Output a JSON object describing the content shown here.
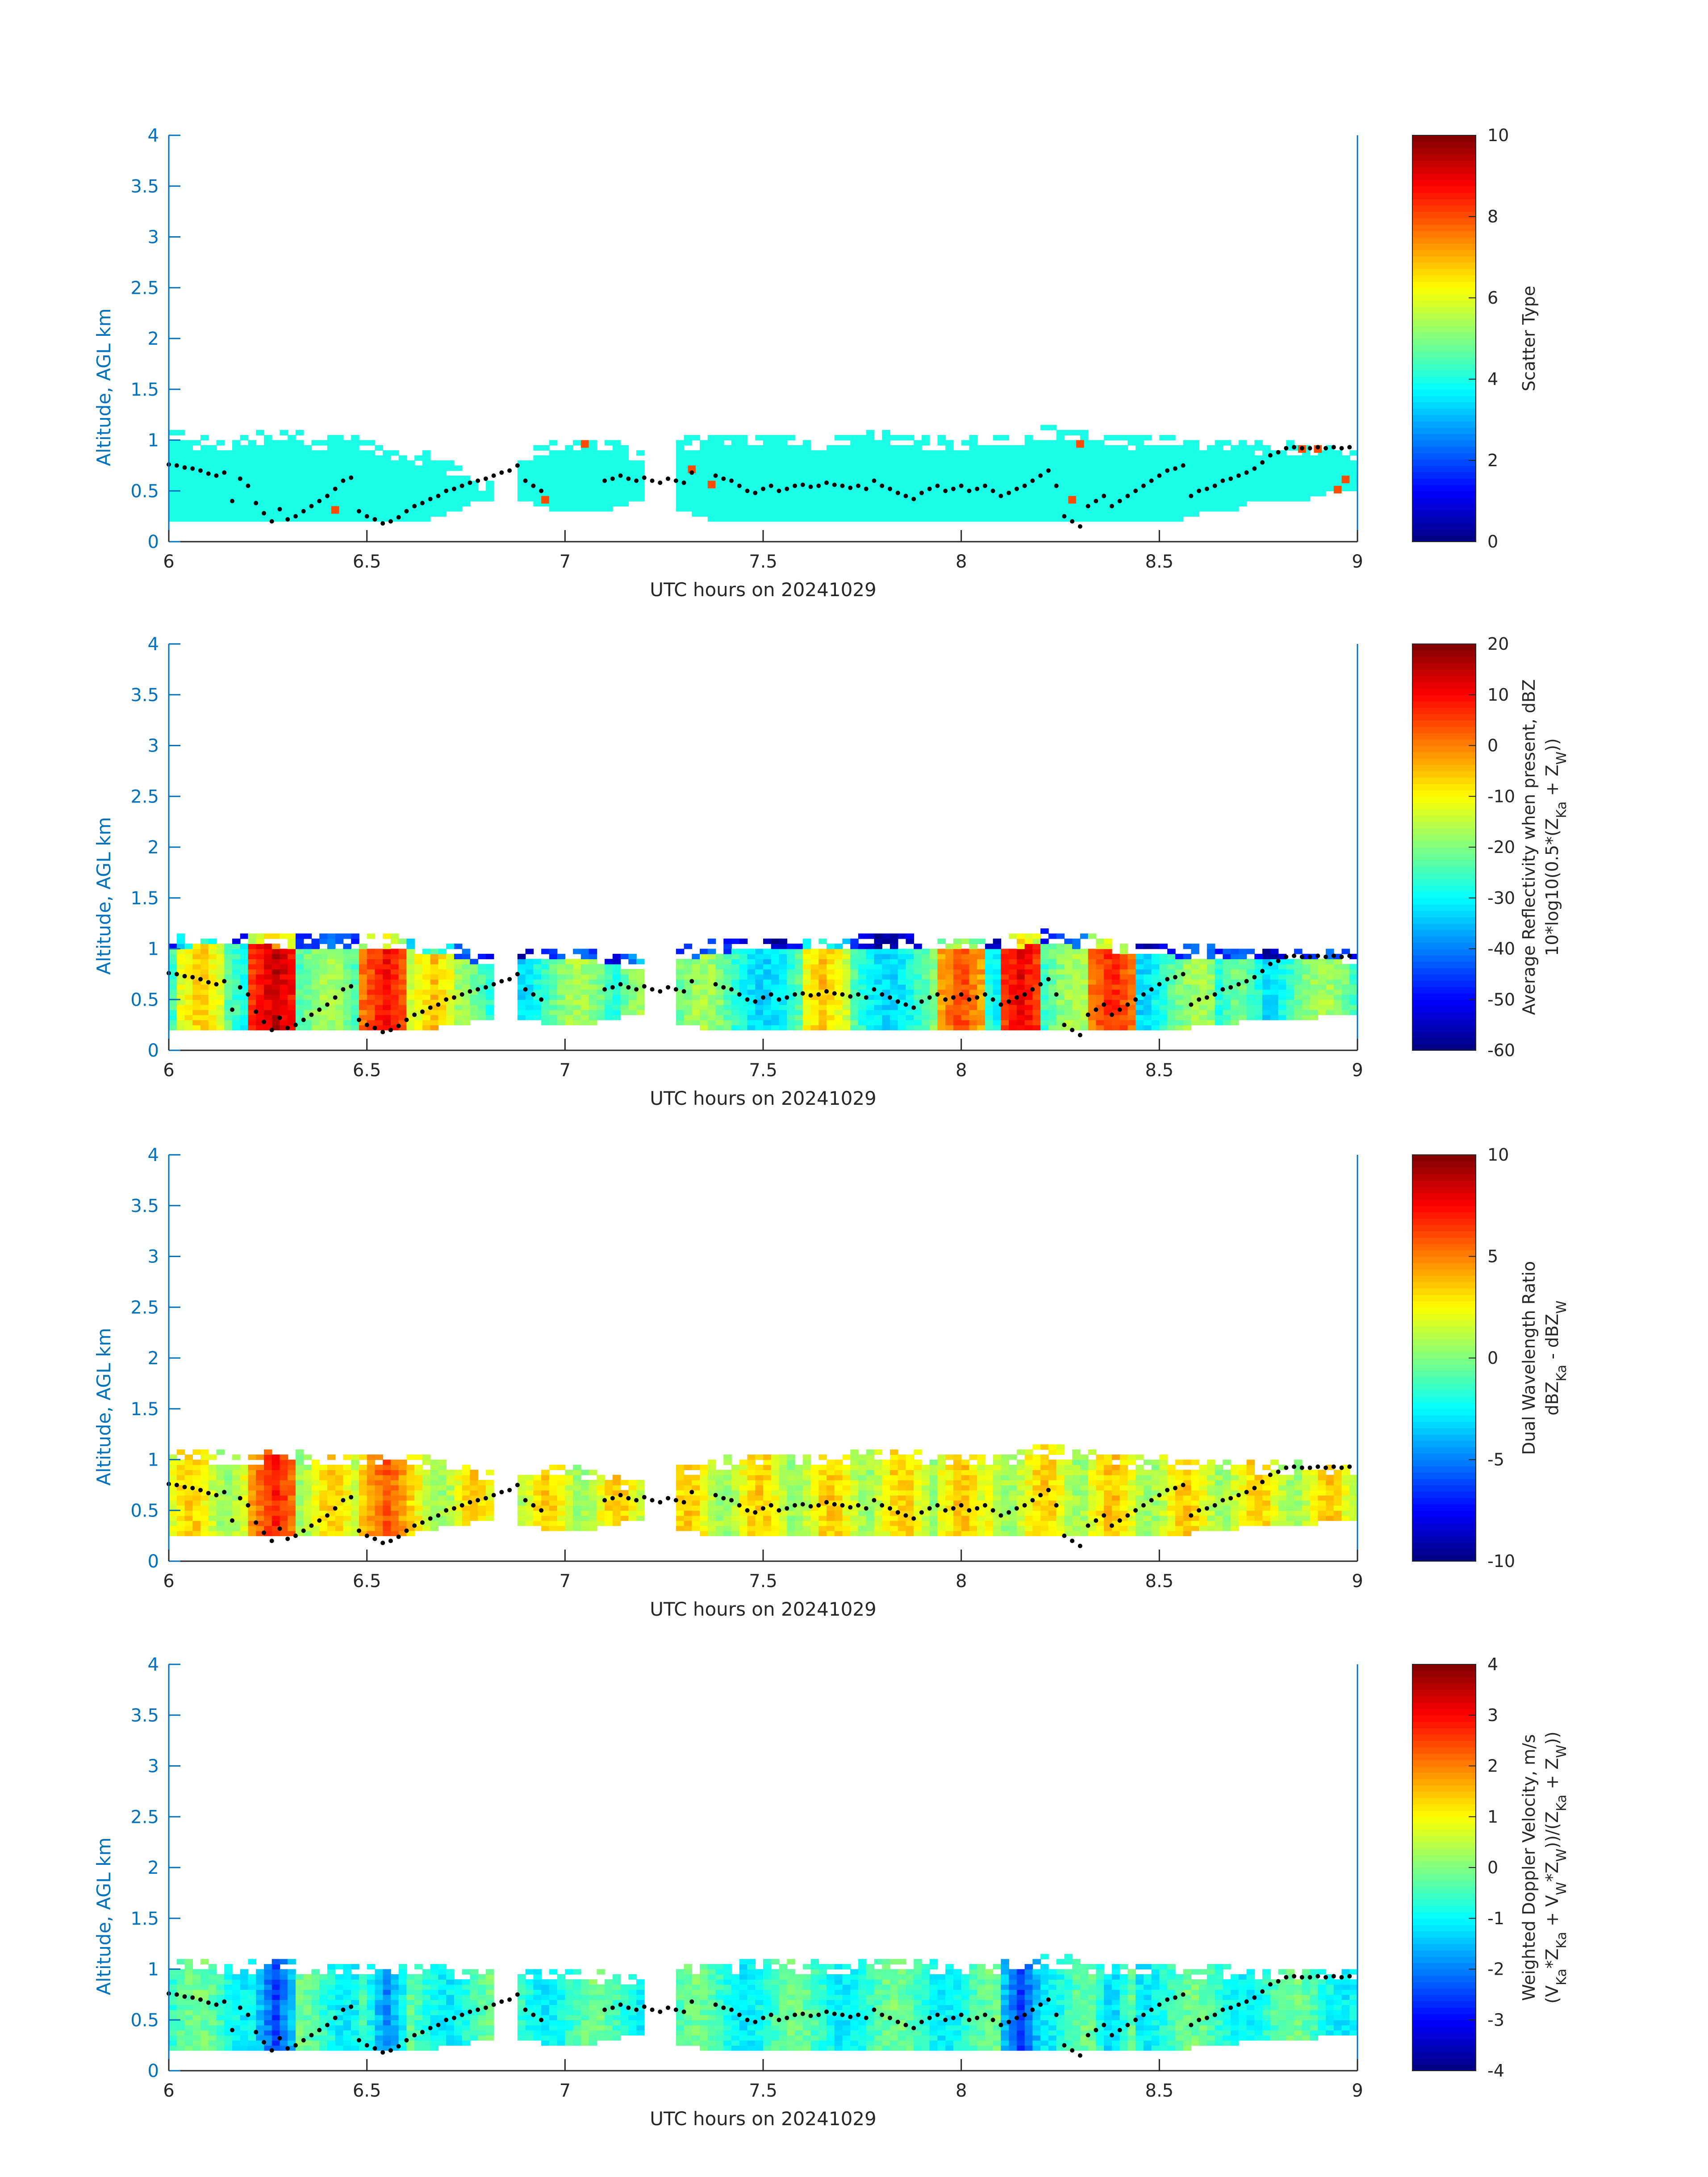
{
  "xlabel": "UTC hours on 20241029",
  "ylabel": "Altitude, AGL km",
  "chart_data": [
    {
      "type": "heatmap",
      "title": "",
      "xlabel": "UTC hours on 20241029",
      "ylabel": "Altitude, AGL km",
      "xlim": [
        6,
        9
      ],
      "ylim": [
        0,
        4
      ],
      "x_ticks": [
        "6",
        "6.5",
        "7",
        "7.5",
        "8",
        "8.5",
        "9"
      ],
      "y_ticks": [
        "0",
        "0.5",
        "1",
        "1.5",
        "2",
        "2.5",
        "3",
        "3.5",
        "4"
      ],
      "colorbar": {
        "label": "Scatter Type",
        "label2": "",
        "range": [
          0,
          10
        ],
        "ticks": [
          "0",
          "2",
          "4",
          "6",
          "8",
          "10"
        ],
        "colormap": "jet"
      },
      "field": "scatter_type",
      "typical_value": 4,
      "outlier_value": 8,
      "cloud_top_km": [
        1.1,
        1.02,
        1.0,
        1.05,
        1.08,
        1.06,
        1.0,
        1.02,
        0.95,
        0.9,
        0.85,
        0.75,
        0.6,
        0.0,
        0.92,
        1.0,
        1.0,
        1.0,
        0.9,
        0.0,
        1.0,
        1.02,
        1.05,
        1.05,
        1.03,
        1.0,
        1.02,
        1.1,
        1.05,
        1.02,
        1.0,
        1.0,
        1.02,
        1.05,
        1.12,
        1.08,
        1.05,
        1.0,
        1.05,
        1.0,
        1.0,
        0.98,
        0.95,
        0.97,
        0.95,
        0.95,
        0.9
      ],
      "cloud_base_km": [
        0.2,
        0.2,
        0.2,
        0.2,
        0.2,
        0.2,
        0.2,
        0.2,
        0.2,
        0.2,
        0.2,
        0.3,
        0.4,
        0.0,
        0.4,
        0.3,
        0.3,
        0.3,
        0.4,
        0.0,
        0.3,
        0.2,
        0.2,
        0.2,
        0.2,
        0.2,
        0.2,
        0.2,
        0.2,
        0.2,
        0.2,
        0.2,
        0.2,
        0.2,
        0.2,
        0.2,
        0.2,
        0.2,
        0.2,
        0.2,
        0.3,
        0.3,
        0.4,
        0.4,
        0.4,
        0.5,
        0.5
      ]
    },
    {
      "type": "heatmap",
      "title": "",
      "xlabel": "UTC hours on 20241029",
      "ylabel": "Altitude, AGL km",
      "xlim": [
        6,
        9
      ],
      "ylim": [
        0,
        4
      ],
      "x_ticks": [
        "6",
        "6.5",
        "7",
        "7.5",
        "8",
        "8.5",
        "9"
      ],
      "y_ticks": [
        "0",
        "0.5",
        "1",
        "1.5",
        "2",
        "2.5",
        "3",
        "3.5",
        "4"
      ],
      "colorbar": {
        "label": "Average Reflectivity when present, dBZ",
        "label2": "10*log10(0.5*(Z_Ka + Z_W))",
        "range": [
          -60,
          20
        ],
        "ticks": [
          "-60",
          "-50",
          "-40",
          "-30",
          "-20",
          "-10",
          "0",
          "10",
          "20"
        ],
        "colormap": "jet"
      },
      "field": "reflectivity",
      "core_intensity_columns": [
        {
          "x": 6.08,
          "value": -5
        },
        {
          "x": 6.27,
          "value": 15
        },
        {
          "x": 6.55,
          "value": 10
        },
        {
          "x": 6.67,
          "value": -5
        },
        {
          "x": 7.2,
          "value": -15
        },
        {
          "x": 7.65,
          "value": -5
        },
        {
          "x": 8.0,
          "value": 5
        },
        {
          "x": 8.15,
          "value": 12
        },
        {
          "x": 8.38,
          "value": 8
        },
        {
          "x": 8.7,
          "value": -20
        }
      ],
      "cloud_top_km": [
        1.12,
        1.12,
        1.15,
        1.15,
        1.12,
        1.12,
        1.1,
        1.12,
        1.12,
        1.1,
        1.05,
        1.02,
        0.95,
        0.0,
        1.0,
        1.0,
        1.0,
        0.95,
        0.9,
        0.0,
        1.0,
        1.05,
        1.08,
        1.1,
        1.1,
        1.08,
        1.08,
        1.12,
        1.12,
        1.12,
        1.1,
        1.08,
        1.1,
        1.12,
        1.16,
        1.12,
        1.1,
        1.02,
        1.05,
        1.02,
        1.02,
        1.0,
        0.98,
        1.0,
        0.98,
        0.98,
        0.95
      ],
      "cloud_base_km": [
        0.2,
        0.2,
        0.2,
        0.2,
        0.2,
        0.2,
        0.2,
        0.2,
        0.2,
        0.2,
        0.2,
        0.25,
        0.3,
        0.0,
        0.3,
        0.25,
        0.25,
        0.3,
        0.35,
        0.0,
        0.25,
        0.2,
        0.2,
        0.2,
        0.2,
        0.2,
        0.2,
        0.2,
        0.2,
        0.2,
        0.2,
        0.2,
        0.2,
        0.2,
        0.2,
        0.2,
        0.2,
        0.2,
        0.2,
        0.2,
        0.25,
        0.25,
        0.3,
        0.3,
        0.3,
        0.35,
        0.35
      ]
    },
    {
      "type": "heatmap",
      "title": "",
      "xlabel": "UTC hours on 20241029",
      "ylabel": "Altitude, AGL km",
      "xlim": [
        6,
        9
      ],
      "ylim": [
        0,
        4
      ],
      "x_ticks": [
        "6",
        "6.5",
        "7",
        "7.5",
        "8",
        "8.5",
        "9"
      ],
      "y_ticks": [
        "0",
        "0.5",
        "1",
        "1.5",
        "2",
        "2.5",
        "3",
        "3.5",
        "4"
      ],
      "colorbar": {
        "label": "Dual Wavelength Ratio",
        "label2": "dBZ_Ka - dBZ_W",
        "range": [
          -10,
          10
        ],
        "ticks": [
          "-10",
          "-5",
          "0",
          "5",
          "10"
        ],
        "colormap": "jet"
      },
      "field": "dwr",
      "core_intensity_columns": [
        {
          "x": 6.27,
          "value": 7
        },
        {
          "x": 6.55,
          "value": 6
        },
        {
          "x": 8.0,
          "value": 4
        },
        {
          "x": 8.38,
          "value": 4
        }
      ],
      "cloud_top_km": [
        1.1,
        1.08,
        1.05,
        1.05,
        1.08,
        1.06,
        1.02,
        1.05,
        1.05,
        1.05,
        1.0,
        0.98,
        0.9,
        0.0,
        0.95,
        0.95,
        0.9,
        0.85,
        0.8,
        0.0,
        0.95,
        1.0,
        1.02,
        1.05,
        1.05,
        1.05,
        1.05,
        1.08,
        1.08,
        1.05,
        1.05,
        1.05,
        1.05,
        1.08,
        1.12,
        1.1,
        1.05,
        1.0,
        1.02,
        1.0,
        1.0,
        0.98,
        0.95,
        0.97,
        0.95,
        0.95,
        0.92
      ],
      "cloud_base_km": [
        0.25,
        0.25,
        0.25,
        0.25,
        0.25,
        0.25,
        0.25,
        0.25,
        0.25,
        0.25,
        0.3,
        0.35,
        0.4,
        0.0,
        0.35,
        0.3,
        0.3,
        0.35,
        0.4,
        0.0,
        0.3,
        0.25,
        0.25,
        0.25,
        0.25,
        0.25,
        0.25,
        0.25,
        0.25,
        0.25,
        0.25,
        0.25,
        0.25,
        0.25,
        0.25,
        0.25,
        0.25,
        0.25,
        0.25,
        0.25,
        0.3,
        0.3,
        0.35,
        0.35,
        0.35,
        0.4,
        0.4
      ]
    },
    {
      "type": "heatmap",
      "title": "",
      "xlabel": "UTC hours on 20241029",
      "ylabel": "Altitude, AGL km",
      "xlim": [
        6,
        9
      ],
      "ylim": [
        0,
        4
      ],
      "x_ticks": [
        "6",
        "6.5",
        "7",
        "7.5",
        "8",
        "8.5",
        "9"
      ],
      "y_ticks": [
        "0",
        "0.5",
        "1",
        "1.5",
        "2",
        "2.5",
        "3",
        "3.5",
        "4"
      ],
      "colorbar": {
        "label": "Weighted Doppler Velocity, m/s",
        "label2": "(V_Ka*Z_Ka + V_W*Z_W))/(Z_Ka + Z_W))",
        "range": [
          -4,
          4
        ],
        "ticks": [
          "-4",
          "-3",
          "-2",
          "-1",
          "0",
          "1",
          "2",
          "3",
          "4"
        ],
        "colormap": "jet"
      },
      "field": "doppler_velocity",
      "core_intensity_columns": [
        {
          "x": 6.27,
          "value": -2.5
        },
        {
          "x": 6.55,
          "value": -2
        },
        {
          "x": 8.15,
          "value": -2.5
        },
        {
          "x": 8.38,
          "value": -1.5
        }
      ],
      "cloud_top_km": [
        1.1,
        1.08,
        1.05,
        1.05,
        1.08,
        1.06,
        1.02,
        1.05,
        1.05,
        1.05,
        1.05,
        1.02,
        1.0,
        0.0,
        1.0,
        1.0,
        1.0,
        0.95,
        0.9,
        0.0,
        1.0,
        1.02,
        1.05,
        1.08,
        1.08,
        1.05,
        1.05,
        1.1,
        1.1,
        1.08,
        1.05,
        1.05,
        1.05,
        1.08,
        1.12,
        1.1,
        1.05,
        1.0,
        1.05,
        1.02,
        1.02,
        1.0,
        0.98,
        1.0,
        0.98,
        0.98,
        0.95
      ],
      "cloud_base_km": [
        0.2,
        0.2,
        0.2,
        0.2,
        0.2,
        0.2,
        0.2,
        0.2,
        0.2,
        0.2,
        0.2,
        0.25,
        0.3,
        0.0,
        0.3,
        0.25,
        0.25,
        0.3,
        0.35,
        0.0,
        0.25,
        0.2,
        0.2,
        0.2,
        0.2,
        0.2,
        0.2,
        0.2,
        0.2,
        0.2,
        0.2,
        0.2,
        0.2,
        0.2,
        0.2,
        0.2,
        0.2,
        0.2,
        0.2,
        0.2,
        0.25,
        0.25,
        0.3,
        0.3,
        0.3,
        0.35,
        0.35
      ]
    }
  ],
  "overlay_points": {
    "color": "#000000",
    "x": [
      6.0,
      6.02,
      6.04,
      6.06,
      6.08,
      6.1,
      6.12,
      6.14,
      6.16,
      6.18,
      6.2,
      6.22,
      6.24,
      6.26,
      6.28,
      6.3,
      6.32,
      6.34,
      6.36,
      6.38,
      6.4,
      6.42,
      6.44,
      6.46,
      6.48,
      6.5,
      6.52,
      6.54,
      6.56,
      6.58,
      6.6,
      6.62,
      6.64,
      6.66,
      6.68,
      6.7,
      6.72,
      6.74,
      6.76,
      6.78,
      6.8,
      6.82,
      6.84,
      6.86,
      6.88,
      6.9,
      6.92,
      6.94,
      7.1,
      7.12,
      7.14,
      7.16,
      7.18,
      7.2,
      7.22,
      7.24,
      7.26,
      7.28,
      7.3,
      7.32,
      7.38,
      7.4,
      7.42,
      7.44,
      7.46,
      7.48,
      7.5,
      7.52,
      7.54,
      7.56,
      7.58,
      7.6,
      7.62,
      7.64,
      7.66,
      7.68,
      7.7,
      7.72,
      7.74,
      7.76,
      7.78,
      7.8,
      7.82,
      7.84,
      7.86,
      7.88,
      7.9,
      7.92,
      7.94,
      7.96,
      7.98,
      8.0,
      8.02,
      8.04,
      8.06,
      8.08,
      8.1,
      8.12,
      8.14,
      8.16,
      8.18,
      8.2,
      8.22,
      8.24,
      8.26,
      8.28,
      8.3,
      8.32,
      8.34,
      8.36,
      8.38,
      8.4,
      8.42,
      8.44,
      8.46,
      8.48,
      8.5,
      8.52,
      8.54,
      8.56,
      8.58,
      8.6,
      8.62,
      8.64,
      8.66,
      8.68,
      8.7,
      8.72,
      8.74,
      8.76,
      8.78,
      8.8,
      8.82,
      8.84,
      8.86,
      8.88,
      8.9,
      8.92,
      8.94,
      8.96,
      8.98
    ],
    "y": [
      0.76,
      0.75,
      0.73,
      0.72,
      0.7,
      0.67,
      0.65,
      0.68,
      0.4,
      0.62,
      0.55,
      0.38,
      0.28,
      0.2,
      0.32,
      0.22,
      0.25,
      0.3,
      0.35,
      0.4,
      0.45,
      0.52,
      0.6,
      0.63,
      0.3,
      0.25,
      0.22,
      0.18,
      0.2,
      0.24,
      0.3,
      0.35,
      0.38,
      0.42,
      0.45,
      0.5,
      0.52,
      0.55,
      0.58,
      0.6,
      0.62,
      0.65,
      0.68,
      0.7,
      0.75,
      0.6,
      0.55,
      0.5,
      0.6,
      0.62,
      0.65,
      0.62,
      0.6,
      0.63,
      0.6,
      0.58,
      0.62,
      0.6,
      0.58,
      0.68,
      0.65,
      0.62,
      0.6,
      0.55,
      0.5,
      0.48,
      0.52,
      0.55,
      0.5,
      0.52,
      0.55,
      0.56,
      0.54,
      0.55,
      0.58,
      0.56,
      0.55,
      0.53,
      0.55,
      0.52,
      0.6,
      0.55,
      0.52,
      0.48,
      0.45,
      0.42,
      0.48,
      0.52,
      0.55,
      0.5,
      0.52,
      0.55,
      0.5,
      0.52,
      0.55,
      0.5,
      0.45,
      0.48,
      0.52,
      0.55,
      0.6,
      0.65,
      0.7,
      0.55,
      0.25,
      0.2,
      0.15,
      0.35,
      0.4,
      0.45,
      0.35,
      0.4,
      0.45,
      0.5,
      0.55,
      0.6,
      0.65,
      0.7,
      0.72,
      0.75,
      0.45,
      0.5,
      0.52,
      0.55,
      0.6,
      0.62,
      0.65,
      0.68,
      0.72,
      0.78,
      0.85,
      0.88,
      0.92,
      0.93,
      0.92,
      0.92,
      0.93,
      0.92,
      0.93,
      0.92,
      0.93
    ]
  },
  "outlier_cells": {
    "x": [
      6.42,
      6.95,
      7.05,
      7.32,
      7.37,
      8.28,
      8.3,
      8.86,
      8.9,
      8.95,
      8.97
    ],
    "y": [
      0.3,
      0.4,
      0.95,
      0.7,
      0.55,
      0.4,
      0.95,
      0.9,
      0.9,
      0.5,
      0.6
    ]
  }
}
